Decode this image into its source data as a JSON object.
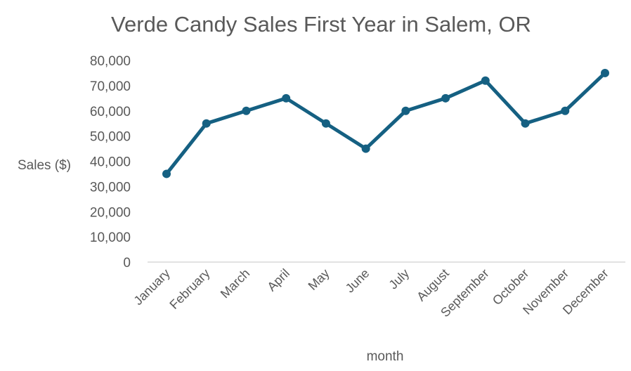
{
  "chart_data": {
    "type": "line",
    "title": "Verde Candy Sales First Year in Salem, OR",
    "xlabel": "month",
    "ylabel": "Sales ($)",
    "categories": [
      "January",
      "February",
      "March",
      "April",
      "May",
      "June",
      "July",
      "August",
      "September",
      "October",
      "November",
      "December"
    ],
    "values": [
      35000,
      55000,
      60000,
      65000,
      55000,
      45000,
      60000,
      65000,
      72000,
      55000,
      60000,
      75000
    ],
    "ylim": [
      0,
      80000
    ],
    "yticks": [
      "0",
      "10,000",
      "20,000",
      "30,000",
      "40,000",
      "50,000",
      "60,000",
      "70,000",
      "80,000"
    ],
    "grid": false,
    "legend": "none",
    "series_color": "#156082"
  }
}
